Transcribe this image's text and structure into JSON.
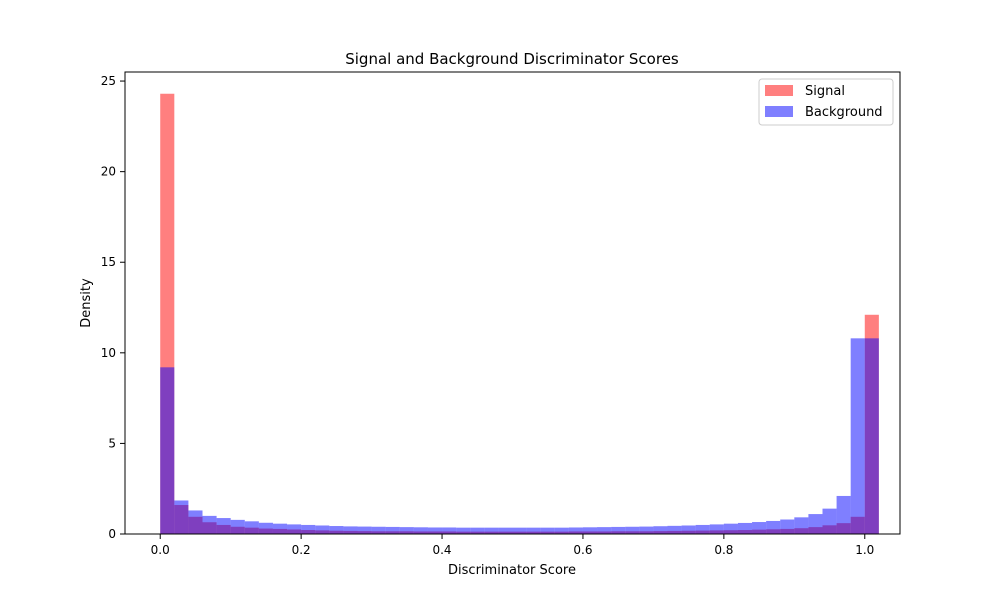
{
  "chart_data": {
    "type": "bar",
    "title": "Signal and Background Discriminator Scores",
    "xlabel": "Discriminator Score",
    "ylabel": "Density",
    "xlim": [
      -0.05,
      1.05
    ],
    "ylim": [
      0,
      25.5
    ],
    "xticks": [
      "0.0",
      "0.2",
      "0.4",
      "0.6",
      "0.8",
      "1.0"
    ],
    "xtick_values": [
      0.0,
      0.2,
      0.4,
      0.6,
      0.8,
      1.0
    ],
    "yticks": [
      "0",
      "5",
      "10",
      "15",
      "20",
      "25"
    ],
    "ytick_values": [
      0,
      5,
      10,
      15,
      20,
      25
    ],
    "grid": false,
    "legend_position": "top-right",
    "bin_edges_start": 0.0,
    "bin_width": 0.02,
    "series": [
      {
        "name": "Signal",
        "color": "#ff0000",
        "alpha": 0.5,
        "values": [
          24.3,
          1.6,
          0.95,
          0.65,
          0.5,
          0.4,
          0.35,
          0.3,
          0.28,
          0.25,
          0.22,
          0.2,
          0.18,
          0.17,
          0.16,
          0.15,
          0.15,
          0.15,
          0.14,
          0.14,
          0.14,
          0.13,
          0.13,
          0.13,
          0.13,
          0.13,
          0.13,
          0.13,
          0.13,
          0.14,
          0.14,
          0.14,
          0.15,
          0.15,
          0.15,
          0.16,
          0.17,
          0.18,
          0.19,
          0.2,
          0.21,
          0.22,
          0.24,
          0.26,
          0.28,
          0.32,
          0.38,
          0.48,
          0.6,
          0.95,
          12.1
        ]
      },
      {
        "name": "Background",
        "color": "#0000ff",
        "alpha": 0.5,
        "values": [
          9.2,
          1.85,
          1.3,
          1.0,
          0.88,
          0.78,
          0.7,
          0.62,
          0.57,
          0.53,
          0.5,
          0.47,
          0.44,
          0.42,
          0.41,
          0.4,
          0.39,
          0.38,
          0.37,
          0.36,
          0.36,
          0.35,
          0.35,
          0.35,
          0.35,
          0.35,
          0.35,
          0.35,
          0.35,
          0.36,
          0.37,
          0.38,
          0.39,
          0.4,
          0.41,
          0.43,
          0.45,
          0.47,
          0.5,
          0.53,
          0.57,
          0.61,
          0.66,
          0.72,
          0.8,
          0.92,
          1.1,
          1.4,
          2.1,
          10.8,
          10.8
        ]
      }
    ]
  }
}
